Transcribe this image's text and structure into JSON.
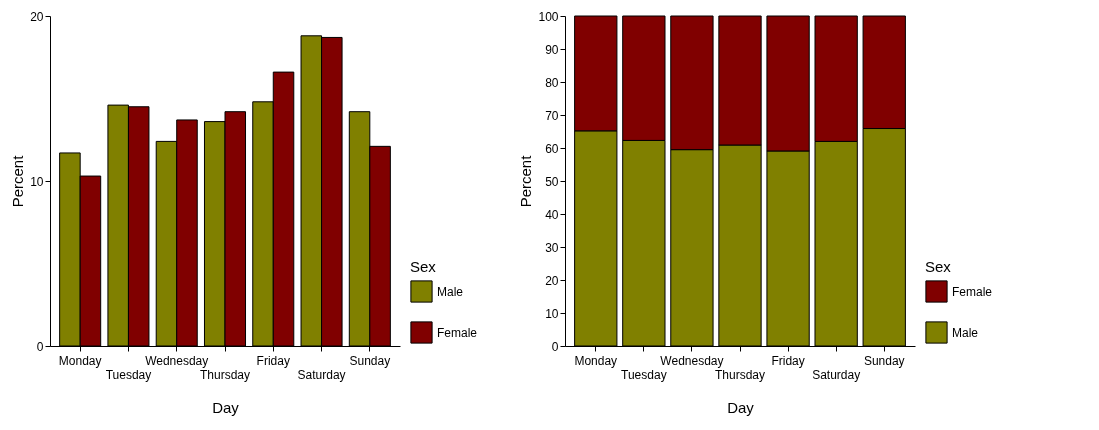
{
  "chart_data": [
    {
      "type": "bar",
      "xlabel": "Day",
      "ylabel": "Percent",
      "legend_title": "Sex",
      "legend": "right",
      "categories": [
        "Monday",
        "Tuesday",
        "Wednesday",
        "Thursday",
        "Friday",
        "Saturday",
        "Sunday"
      ],
      "ylim": [
        0,
        20
      ],
      "yticks": [
        0,
        10,
        20
      ],
      "series": [
        {
          "name": "Male",
          "color": "#808000",
          "values": [
            11.7,
            14.6,
            12.4,
            13.6,
            14.8,
            18.8,
            14.2
          ]
        },
        {
          "name": "Female",
          "color": "#800000",
          "values": [
            10.3,
            14.5,
            13.7,
            14.2,
            16.6,
            18.7,
            12.1
          ]
        }
      ]
    },
    {
      "type": "bar",
      "stacked": true,
      "xlabel": "Day",
      "ylabel": "Percent",
      "legend_title": "Sex",
      "legend": "right",
      "categories": [
        "Monday",
        "Tuesday",
        "Wednesday",
        "Thursday",
        "Friday",
        "Saturday",
        "Sunday"
      ],
      "ylim": [
        0,
        100
      ],
      "yticks": [
        0,
        10,
        20,
        30,
        40,
        50,
        60,
        70,
        80,
        90,
        100
      ],
      "series": [
        {
          "name": "Male",
          "color": "#808000",
          "values": [
            65.2,
            62.3,
            59.5,
            60.9,
            59.1,
            62.0,
            65.9
          ]
        },
        {
          "name": "Female",
          "color": "#800000",
          "values": [
            34.8,
            37.7,
            40.5,
            39.1,
            40.9,
            38.0,
            34.1
          ]
        }
      ]
    }
  ]
}
